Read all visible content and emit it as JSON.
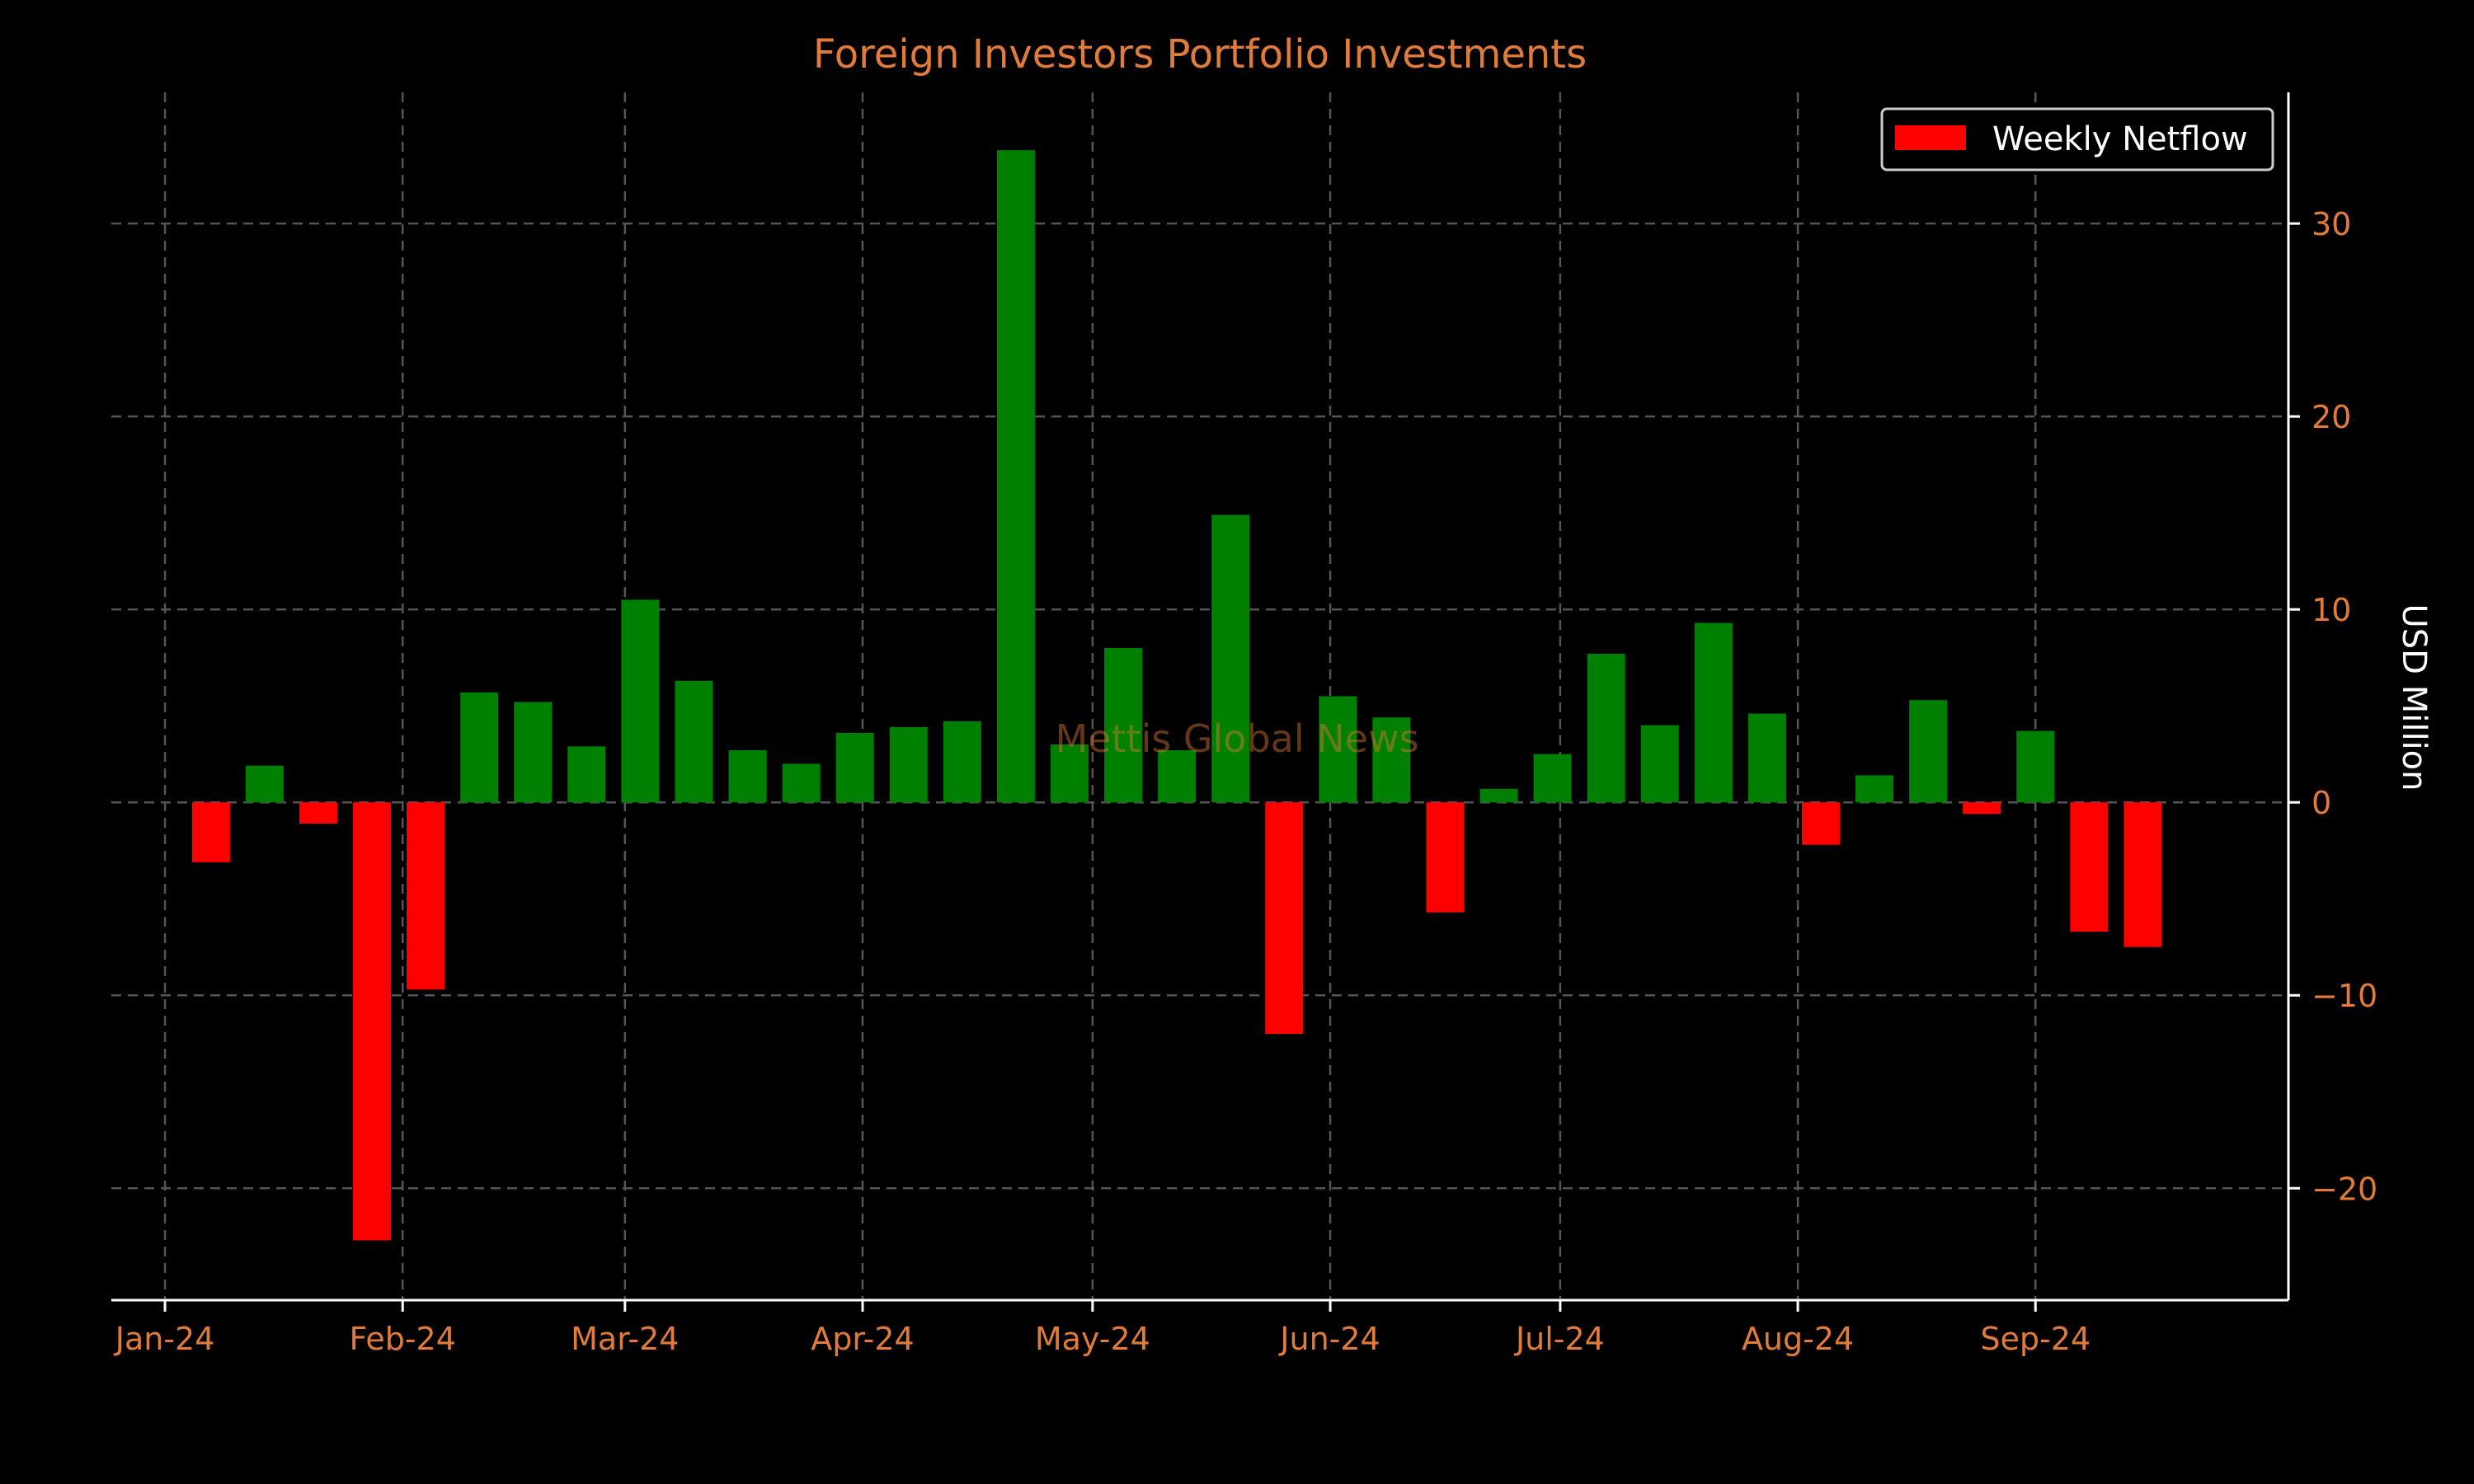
{
  "chart_data": {
    "type": "bar",
    "title": "Foreign Investors Portfolio Investments",
    "xlabel": "",
    "ylabel": "USD Million",
    "watermark": "Mettis Global News",
    "legend": {
      "label": "Weekly Netflow",
      "position": "top-right"
    },
    "grid": true,
    "ylim": [
      -25.8,
      36.8
    ],
    "yticks": [
      -20,
      -10,
      0,
      10,
      20,
      30
    ],
    "yticklabels": [
      "−20",
      "−10",
      "0",
      "10",
      "20",
      "30"
    ],
    "xlim": [
      "2023-12-25",
      "2024-10-04"
    ],
    "xticks": [
      {
        "label": "Jan-24",
        "date": "2024-01-01"
      },
      {
        "label": "Feb-24",
        "date": "2024-02-01"
      },
      {
        "label": "Mar-24",
        "date": "2024-03-01"
      },
      {
        "label": "Apr-24",
        "date": "2024-04-01"
      },
      {
        "label": "May-24",
        "date": "2024-05-01"
      },
      {
        "label": "Jun-24",
        "date": "2024-06-01"
      },
      {
        "label": "Jul-24",
        "date": "2024-07-01"
      },
      {
        "label": "Aug-24",
        "date": "2024-08-01"
      },
      {
        "label": "Sep-24",
        "date": "2024-09-01"
      }
    ],
    "colors": {
      "positive": "#008000",
      "negative": "#ff0000",
      "title": "#e07b39",
      "tick": "#e07b39",
      "axis": "#ffffff",
      "grid": "#555555"
    },
    "series": [
      {
        "name": "Weekly Netflow",
        "points": [
          {
            "date": "2024-01-07",
            "value": -3.1
          },
          {
            "date": "2024-01-14",
            "value": 1.9
          },
          {
            "date": "2024-01-21",
            "value": -1.1
          },
          {
            "date": "2024-01-28",
            "value": -22.7
          },
          {
            "date": "2024-02-04",
            "value": -9.7
          },
          {
            "date": "2024-02-11",
            "value": 5.7
          },
          {
            "date": "2024-02-18",
            "value": 5.2
          },
          {
            "date": "2024-02-25",
            "value": 2.9
          },
          {
            "date": "2024-03-03",
            "value": 10.5
          },
          {
            "date": "2024-03-10",
            "value": 6.3
          },
          {
            "date": "2024-03-17",
            "value": 2.7
          },
          {
            "date": "2024-03-24",
            "value": 2.0
          },
          {
            "date": "2024-03-31",
            "value": 3.6
          },
          {
            "date": "2024-04-07",
            "value": 3.9
          },
          {
            "date": "2024-04-14",
            "value": 4.2
          },
          {
            "date": "2024-04-21",
            "value": 33.8
          },
          {
            "date": "2024-04-28",
            "value": 3.0
          },
          {
            "date": "2024-05-05",
            "value": 8.0
          },
          {
            "date": "2024-05-12",
            "value": 2.7
          },
          {
            "date": "2024-05-19",
            "value": 14.9
          },
          {
            "date": "2024-05-26",
            "value": -12.0
          },
          {
            "date": "2024-06-02",
            "value": 5.5
          },
          {
            "date": "2024-06-09",
            "value": 4.4
          },
          {
            "date": "2024-06-16",
            "value": -5.7
          },
          {
            "date": "2024-06-23",
            "value": 0.7
          },
          {
            "date": "2024-06-30",
            "value": 2.5
          },
          {
            "date": "2024-07-07",
            "value": 7.7
          },
          {
            "date": "2024-07-14",
            "value": 4.0
          },
          {
            "date": "2024-07-21",
            "value": 9.3
          },
          {
            "date": "2024-07-28",
            "value": 4.6
          },
          {
            "date": "2024-08-04",
            "value": -2.2
          },
          {
            "date": "2024-08-11",
            "value": 1.4
          },
          {
            "date": "2024-08-18",
            "value": 5.3
          },
          {
            "date": "2024-08-25",
            "value": -0.6
          },
          {
            "date": "2024-09-01",
            "value": 3.7
          },
          {
            "date": "2024-09-08",
            "value": -6.7
          },
          {
            "date": "2024-09-15",
            "value": -7.5
          }
        ]
      }
    ]
  }
}
